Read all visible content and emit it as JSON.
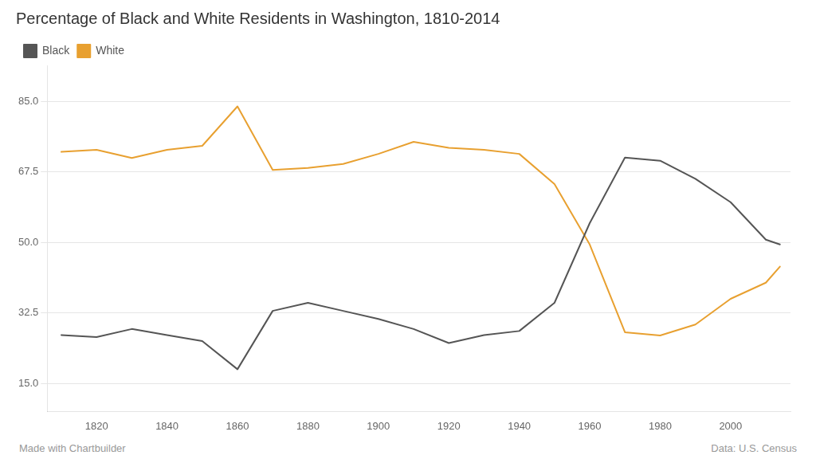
{
  "chart_data": {
    "type": "line",
    "title": "Percentage of Black and White Residents in Washington, 1810-2014",
    "x": [
      1810,
      1820,
      1830,
      1840,
      1850,
      1860,
      1870,
      1880,
      1890,
      1900,
      1910,
      1920,
      1930,
      1940,
      1950,
      1960,
      1970,
      1980,
      1990,
      2000,
      2010,
      2014
    ],
    "series": [
      {
        "name": "Black",
        "color": "#555555",
        "values": [
          27.0,
          26.5,
          28.5,
          27.0,
          25.5,
          18.5,
          33.0,
          35.0,
          33.0,
          31.0,
          28.5,
          25.0,
          27.0,
          28.0,
          35.0,
          54.8,
          71.1,
          70.3,
          65.8,
          60.0,
          50.7,
          49.5
        ]
      },
      {
        "name": "White",
        "color": "#E8A030",
        "values": [
          72.5,
          73.0,
          71.0,
          73.0,
          74.0,
          83.8,
          68.0,
          68.5,
          69.5,
          72.0,
          75.0,
          73.5,
          73.0,
          72.0,
          64.5,
          49.5,
          27.7,
          26.9,
          29.6,
          36.0,
          40.0,
          44.0
        ]
      }
    ],
    "xlim": [
      1806,
      2017
    ],
    "xticks": [
      1820,
      1840,
      1860,
      1880,
      1900,
      1920,
      1940,
      1960,
      1980,
      2000
    ],
    "ylim": [
      8,
      94
    ],
    "yticks": [
      {
        "value": 15.0,
        "label": "15.0"
      },
      32.5,
      {
        "value": 50.0,
        "label": "50.0"
      },
      67.5,
      {
        "value": 85.0,
        "label": "85.0"
      }
    ],
    "grid": true,
    "legend": "top-left",
    "annotations": [
      "Made with Chartbuilder",
      "Data: U.S. Census"
    ]
  }
}
